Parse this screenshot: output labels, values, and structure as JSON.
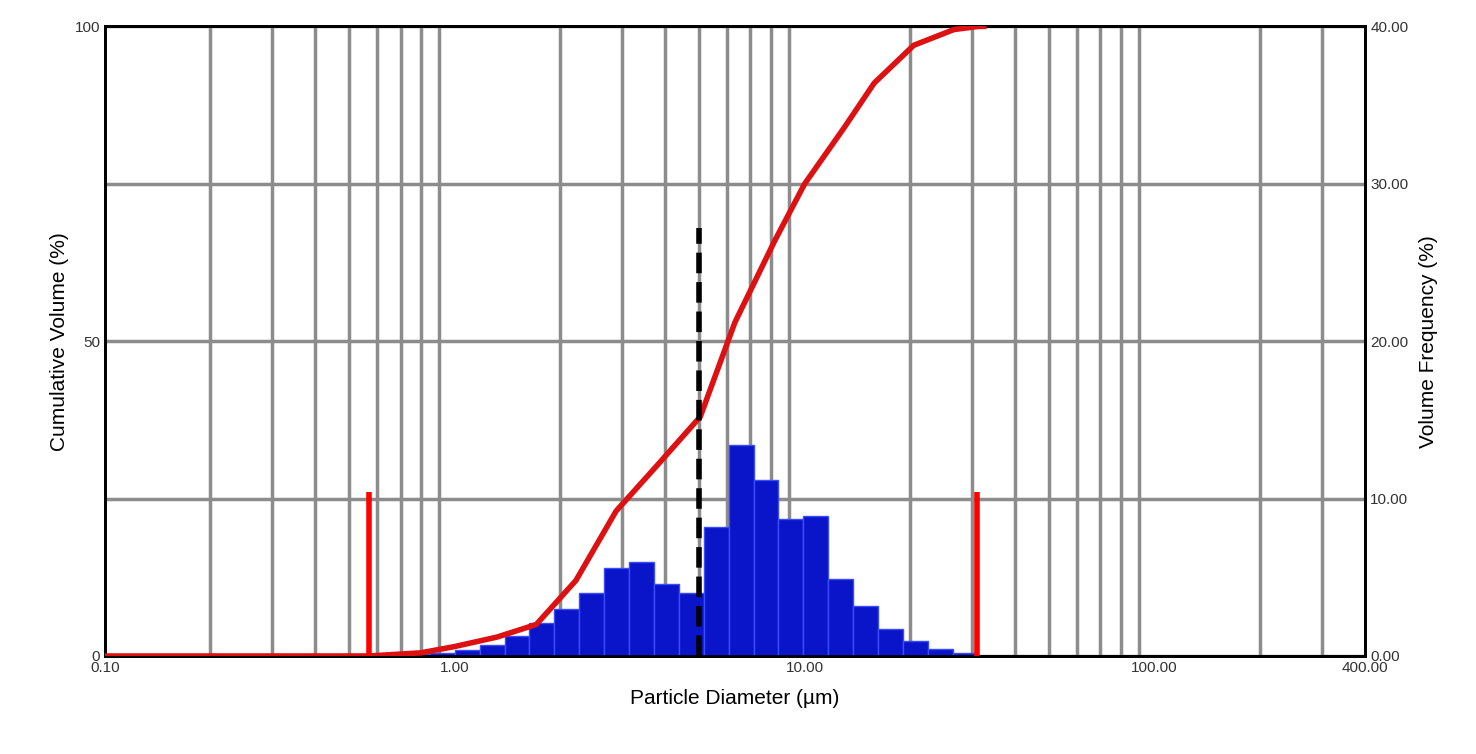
{
  "chart_data": {
    "type": "histogram",
    "xlabel": "Particle Diameter (µm)",
    "ylabel": "Cumulative Volume (%)",
    "y2label": "Volume Frequency (%)",
    "log": "x",
    "grid": true,
    "xlim": [
      0.1,
      400
    ],
    "xticks": [
      {
        "value": 0.1,
        "label": "0.10"
      },
      {
        "value": 1,
        "label": "1.00"
      },
      {
        "value": 10,
        "label": "10.00"
      },
      {
        "value": 100,
        "label": "100.00"
      },
      {
        "value": 400,
        "label": "400.00"
      }
    ],
    "ylim": [
      0,
      100
    ],
    "yticks": [
      0,
      50,
      100
    ],
    "y2lim": [
      0,
      40
    ],
    "y2ticks": [
      {
        "value": 0,
        "label": "0.00"
      },
      {
        "value": 10,
        "label": "10.00"
      },
      {
        "value": 20,
        "label": "20.00"
      },
      {
        "value": 30,
        "label": "30.00"
      },
      {
        "value": 40,
        "label": "40.00"
      }
    ],
    "series": [
      {
        "type": "histogram",
        "axis": "y2",
        "color": "#0a14c8",
        "bins": [
          0.721,
          0.849,
          1.0,
          1.178,
          1.388,
          1.635,
          1.926,
          2.269,
          2.673,
          3.149,
          3.709,
          4.37,
          5.147,
          6.063,
          7.143,
          8.414,
          9.912,
          11.68,
          13.75,
          16.2,
          19.09,
          22.48,
          26.49,
          31.2
        ],
        "values": [
          0.1,
          0.2,
          0.4,
          0.7,
          1.3,
          2.1,
          3.0,
          4.0,
          5.6,
          6.0,
          4.6,
          4.0,
          8.2,
          13.4,
          11.2,
          8.7,
          8.9,
          4.9,
          3.2,
          1.7,
          0.95,
          0.45,
          0.2
        ]
      },
      {
        "type": "line",
        "axis": "y",
        "color": "#dd1111",
        "x": [
          0.1,
          0.57,
          0.8,
          1.0,
          1.32,
          1.71,
          2.22,
          2.89,
          3.75,
          5.03,
          6.32,
          8.22,
          10.0,
          13.0,
          15.8,
          20.5,
          26.7,
          31.4,
          32.5
        ],
        "values": [
          0,
          0,
          0.5,
          1.5,
          3,
          5,
          12,
          23,
          30,
          38,
          53,
          66,
          75,
          84,
          91,
          97,
          99.5,
          100,
          100
        ]
      }
    ],
    "markers": [
      {
        "x": 0.57,
        "top": 26,
        "color": "#ff0000",
        "line_style": "solid"
      },
      {
        "x": 5.0,
        "top": 68,
        "color": "#000000",
        "line_style": "dashed"
      },
      {
        "x": 31,
        "top": 26,
        "color": "#ff0000",
        "line_style": "solid"
      }
    ]
  }
}
